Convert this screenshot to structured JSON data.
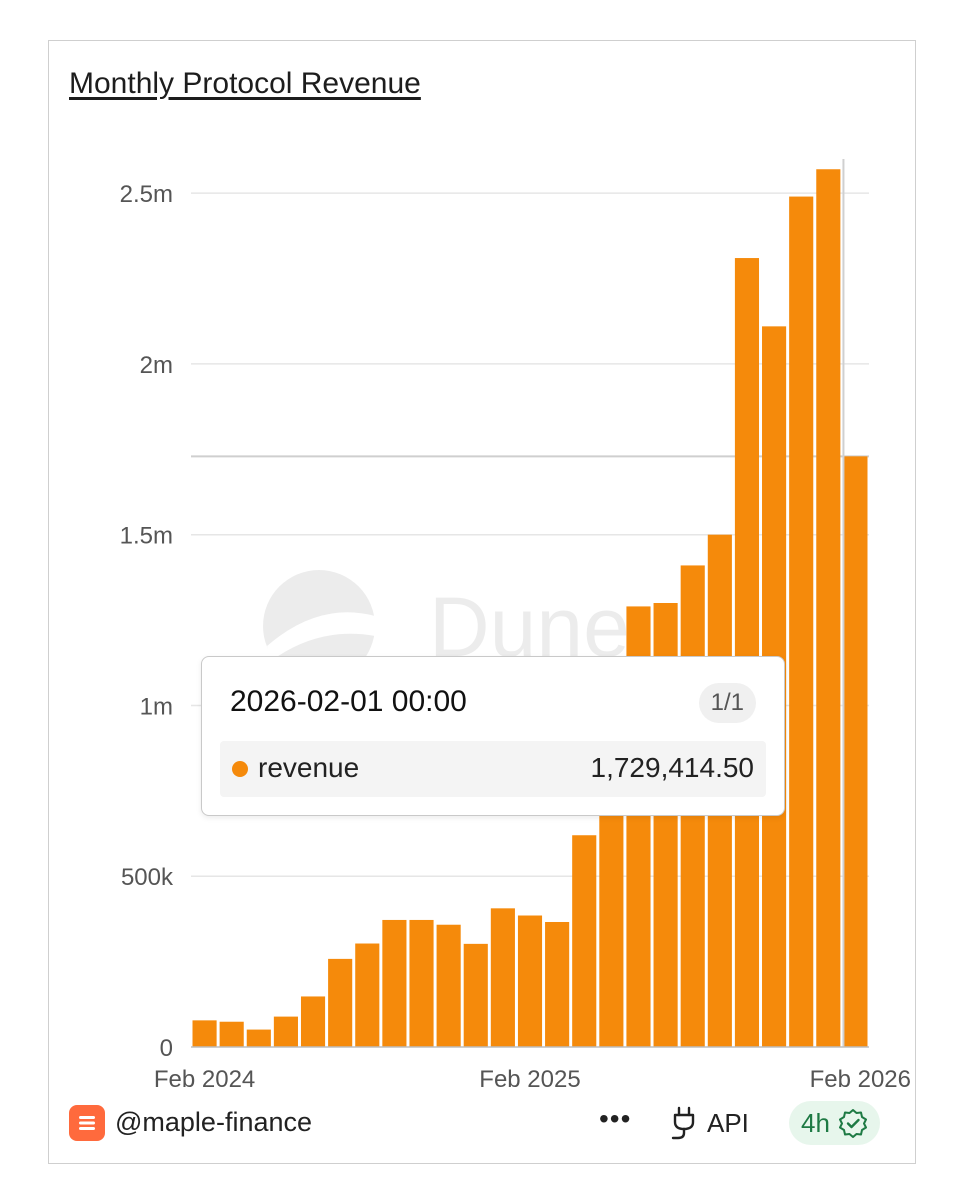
{
  "title": "Monthly Protocol Revenue",
  "watermark": "Dune",
  "tooltip": {
    "date": "2026-02-01 00:00",
    "page": "1/1",
    "series": "revenue",
    "value": "1,729,414.50"
  },
  "footer": {
    "handle": "@maple-finance",
    "more": "•••",
    "api_label": "API",
    "freshness": "4h"
  },
  "colors": {
    "bar": "#f58a0b",
    "grid": "#e6e6e6",
    "axis_text": "#555555",
    "badge_bg": "#e7f6ec",
    "badge_text": "#1e7a44"
  },
  "icons": [
    "maple-logo-icon",
    "more-icon",
    "plug-icon",
    "verified-icon"
  ],
  "chart_data": {
    "type": "bar",
    "title": "Monthly Protocol Revenue",
    "xlabel": "",
    "ylabel": "",
    "ylim": [
      0,
      2600000
    ],
    "yticks": [
      {
        "value": 0,
        "label": "0"
      },
      {
        "value": 500000,
        "label": "500k"
      },
      {
        "value": 1000000,
        "label": "1m"
      },
      {
        "value": 1500000,
        "label": "1.5m"
      },
      {
        "value": 2000000,
        "label": "2m"
      },
      {
        "value": 2500000,
        "label": "2.5m"
      }
    ],
    "xticks": [
      {
        "category": "2024-02",
        "label": "Feb 2024"
      },
      {
        "category": "2025-02",
        "label": "Feb 2025"
      },
      {
        "category": "2026-02",
        "label": "Feb 2026"
      }
    ],
    "categories": [
      "2024-02",
      "2024-03",
      "2024-04",
      "2024-05",
      "2024-06",
      "2024-07",
      "2024-08",
      "2024-09",
      "2024-10",
      "2024-11",
      "2024-12",
      "2025-01",
      "2025-02",
      "2025-03",
      "2025-04",
      "2025-05",
      "2025-06",
      "2025-07",
      "2025-08",
      "2025-09",
      "2025-10",
      "2025-11",
      "2025-12",
      "2026-01",
      "2026-02"
    ],
    "series": [
      {
        "name": "revenue",
        "values": [
          78000,
          74000,
          51000,
          89000,
          148000,
          258000,
          303000,
          372000,
          372000,
          358000,
          302000,
          406000,
          385000,
          366000,
          620000,
          980000,
          1290000,
          1300000,
          1410000,
          1500000,
          2310000,
          2110000,
          2490000,
          2570000,
          1729414.5
        ]
      }
    ],
    "highlight": {
      "category": "2026-02",
      "value": 1729414.5
    },
    "grid": true,
    "legend": "none"
  }
}
